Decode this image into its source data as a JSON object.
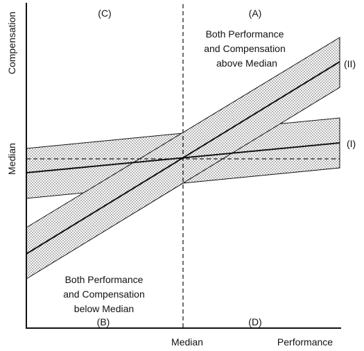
{
  "quadrants": {
    "top_left": "(C)",
    "top_right": "(A)",
    "bottom_left": "(B)",
    "bottom_right": "(D)"
  },
  "annotations": {
    "above": [
      "Both Performance",
      "and Compensation",
      "above Median"
    ],
    "below": [
      "Both Performance",
      "and Compensation",
      "below Median"
    ]
  },
  "axes": {
    "y_label": "Compensation",
    "y_median": "Median",
    "x_median": "Median",
    "x_label": "Performance"
  },
  "bands": [
    {
      "id": "I",
      "label": "(I)"
    },
    {
      "id": "II",
      "label": "(II)"
    }
  ],
  "colors": {
    "ink": "#111111",
    "band_fill_dots": "#444444",
    "background": "#ffffff"
  }
}
